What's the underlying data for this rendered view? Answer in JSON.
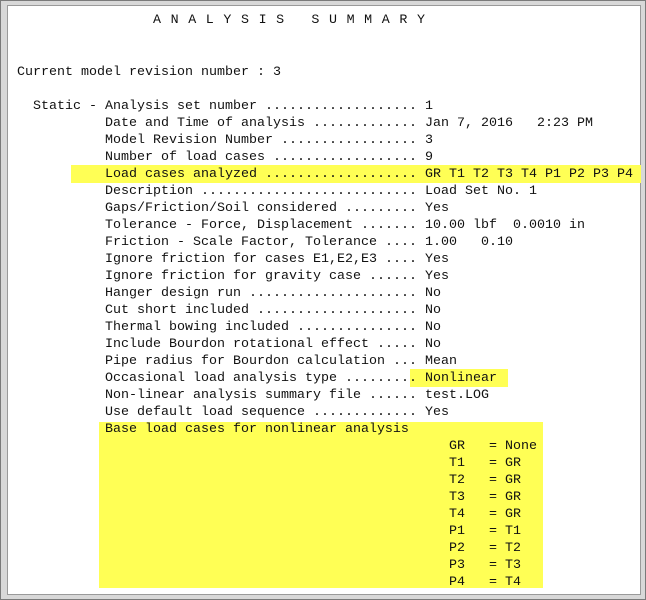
{
  "title": "ANALYSIS SUMMARY",
  "revision_line": "Current model revision number : 3",
  "section_label": "Static -",
  "rows": [
    {
      "label": "Analysis set number",
      "value": "1"
    },
    {
      "label": "Date and Time of analysis",
      "value": "Jan 7, 2016   2:23 PM"
    },
    {
      "label": "Model Revision Number",
      "value": "3"
    },
    {
      "label": "Number of load cases",
      "value": "9"
    },
    {
      "label": "Load cases analyzed",
      "value": "GR T1 T2 T3 T4 P1 P2 P3 P4",
      "highlight": "row"
    },
    {
      "label": "Description",
      "value": "Load Set No. 1"
    },
    {
      "label": "Gaps/Friction/Soil considered",
      "value": "Yes"
    },
    {
      "label": "Tolerance - Force, Displacement",
      "value": "10.00 lbf  0.0010 in"
    },
    {
      "label": "Friction - Scale Factor, Tolerance",
      "value": "1.00   0.10"
    },
    {
      "label": "Ignore friction for cases E1,E2,E3",
      "value": "Yes"
    },
    {
      "label": "Ignore friction for gravity case",
      "value": "Yes"
    },
    {
      "label": "Hanger design run",
      "value": "No"
    },
    {
      "label": "Cut short included",
      "value": "No"
    },
    {
      "label": "Thermal bowing included",
      "value": "No"
    },
    {
      "label": "Include Bourdon rotational effect",
      "value": "No"
    },
    {
      "label": "Pipe radius for Bourdon calculation",
      "value": "Mean"
    },
    {
      "label": "Occasional load analysis type",
      "value": "Nonlinear",
      "highlight": "value"
    },
    {
      "label": "Non-linear analysis summary file",
      "value": "test.LOG"
    },
    {
      "label": "Use default load sequence",
      "value": "Yes"
    }
  ],
  "base_heading": "Base load cases for nonlinear analysis",
  "base_cases": [
    {
      "case": "GR",
      "base": "None"
    },
    {
      "case": "T1",
      "base": "GR"
    },
    {
      "case": "T2",
      "base": "GR"
    },
    {
      "case": "T3",
      "base": "GR"
    },
    {
      "case": "T4",
      "base": "GR"
    },
    {
      "case": "P1",
      "base": "T1"
    },
    {
      "case": "P2",
      "base": "T2"
    },
    {
      "case": "P3",
      "base": "T3"
    },
    {
      "case": "P4",
      "base": "T4"
    }
  ],
  "colors": {
    "highlight": "#ffff55",
    "text": "#111111"
  }
}
